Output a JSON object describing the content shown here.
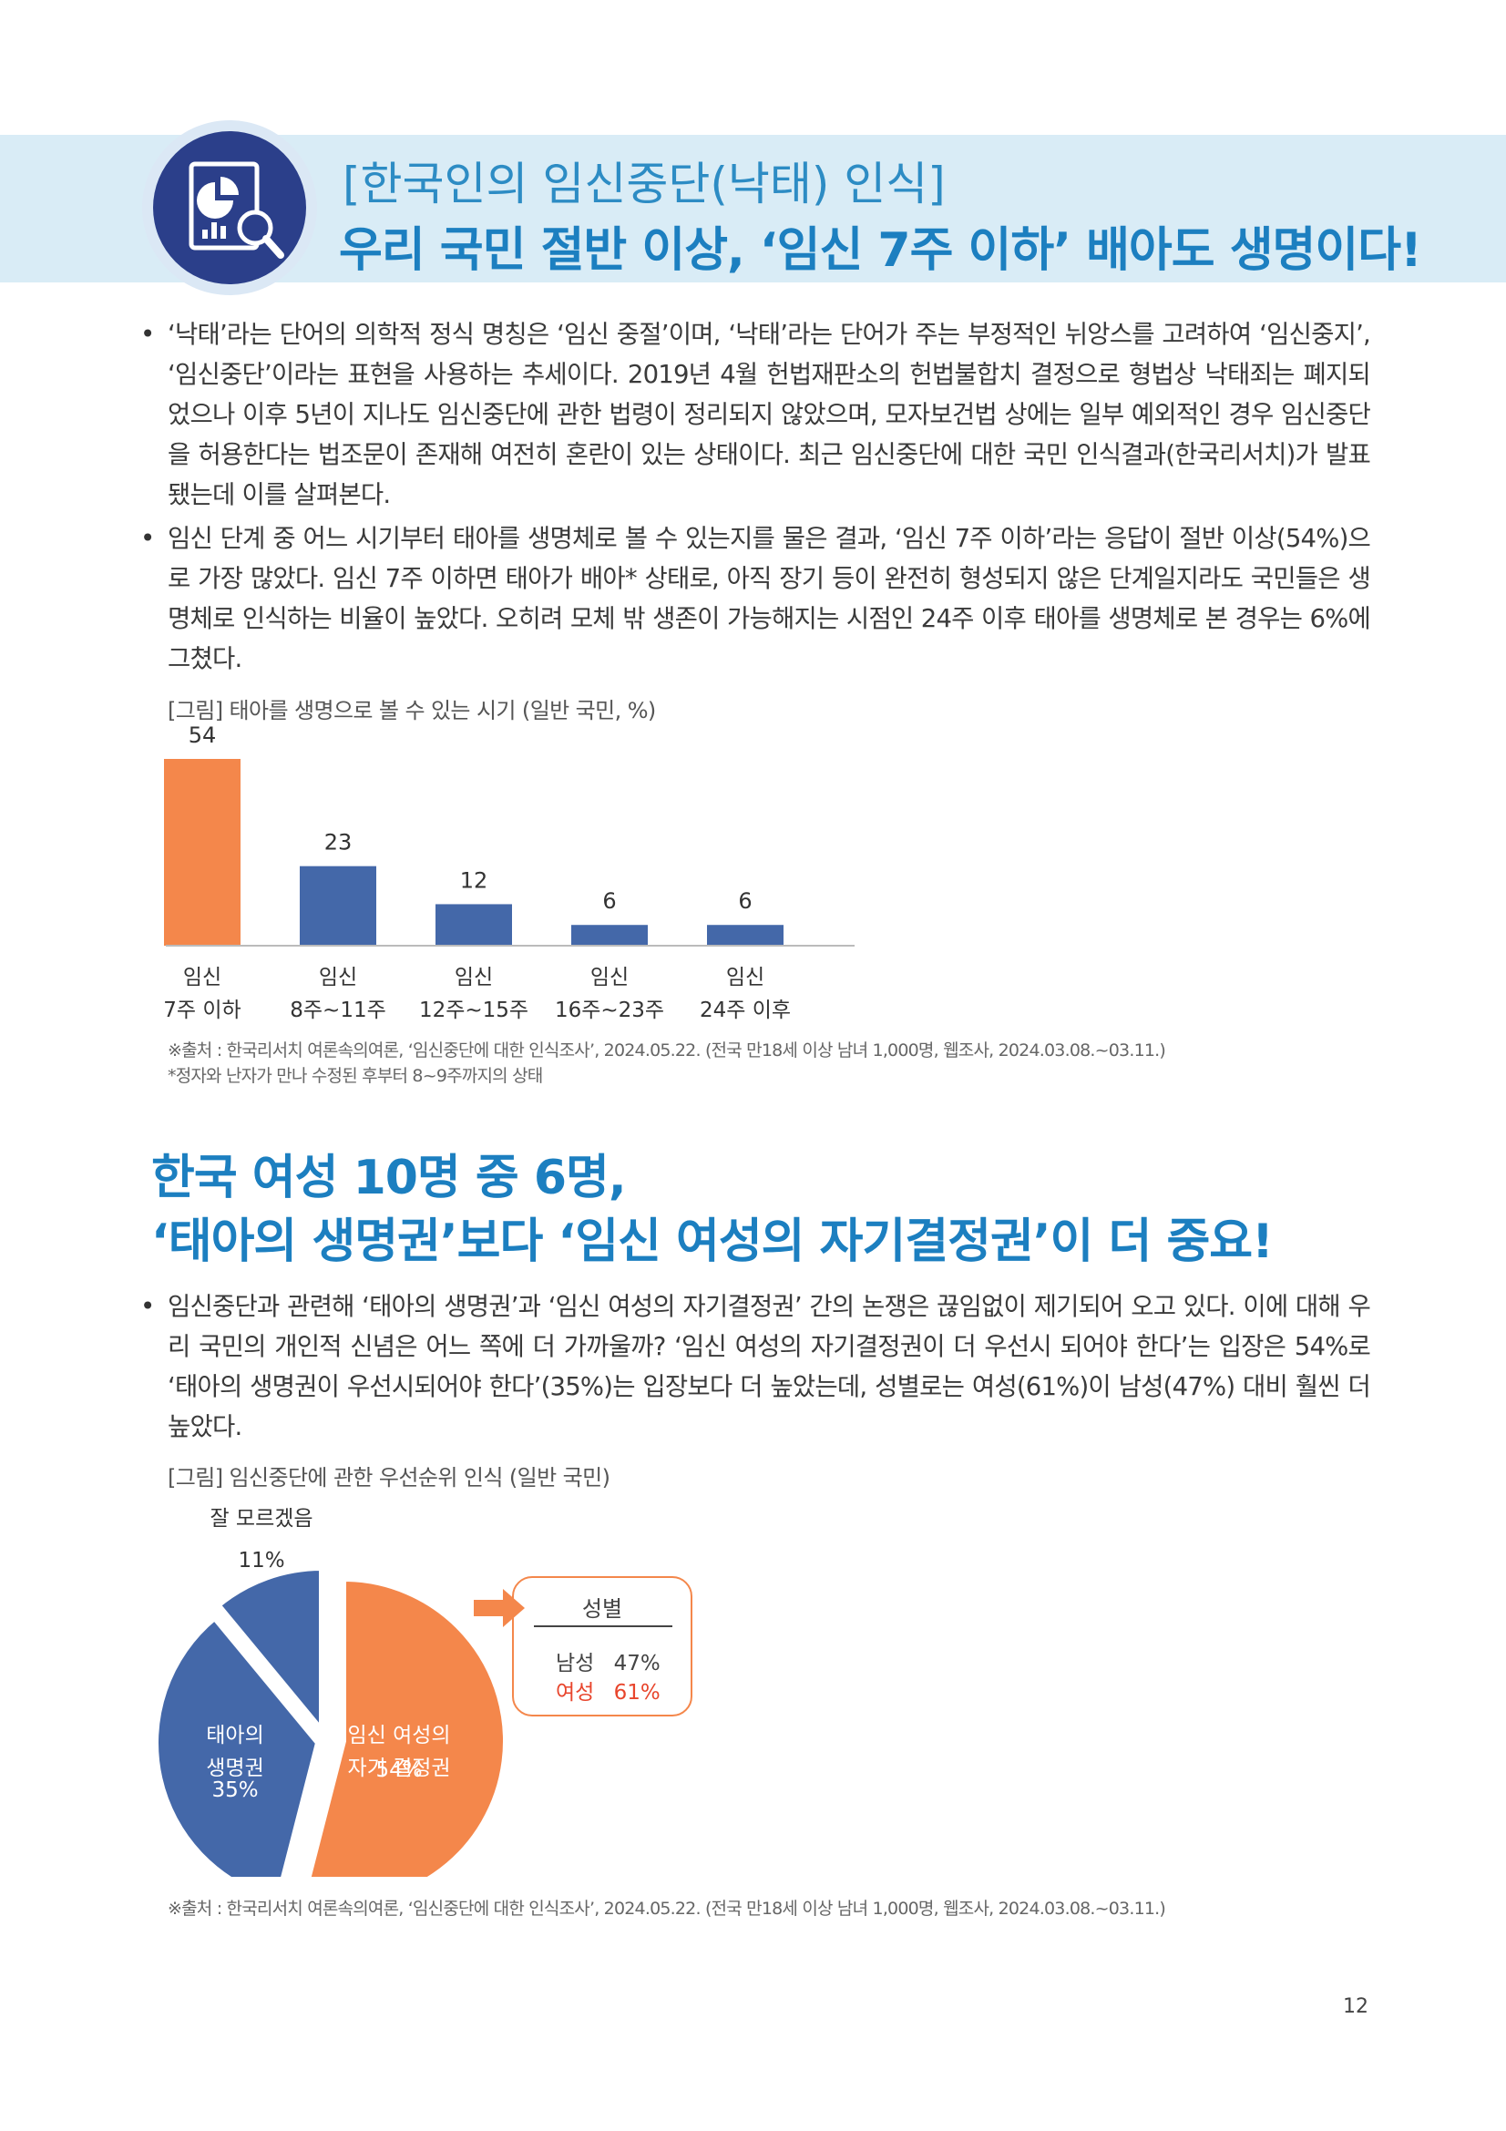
{
  "header": {
    "subtitle": "[한국인의 임신중단(낙태) 인식]",
    "title": "우리 국민 절반 이상, ‘임신 7주 이하’ 배아도 생명이다!"
  },
  "section1": {
    "bullets": [
      "‘낙태’라는 단어의 의학적 정식 명칭은 ‘임신 중절’이며, ‘낙태’라는 단어가 주는 부정적인 뉘앙스를 고려하여 ‘임신중지’, ‘임신중단’이라는 표현을 사용하는 추세이다. 2019년 4월 헌법재판소의 헌법불합치 결정으로 형법상 낙태죄는 폐지되었으나 이후 5년이 지나도 임신중단에 관한 법령이 정리되지 않았으며, 모자보건법 상에는 일부 예외적인 경우 임신중단을 허용한다는 법조문이 존재해 여전히 혼란이 있는 상태이다. 최근 임신중단에 대한 국민 인식결과(한국리서치)가 발표됐는데 이를 살펴본다.",
      "임신 단계 중 어느 시기부터 태아를 생명체로 볼 수 있는지를 물은 결과, ‘임신 7주 이하’라는 응답이 절반 이상(54%)으로 가장 많았다. 임신 7주 이하면 태아가 배아* 상태로, 아직 장기 등이 완전히 형성되지 않은 단계일지라도 국민들은 생명체로 인식하는 비율이 높았다. 오히려 모체 밖 생존이 가능해지는 시점인 24주 이후 태아를 생명체로 본 경우는 6%에 그쳤다."
    ]
  },
  "figure1": {
    "caption": "[그림] 태아를 생명으로 볼 수 있는 시기 (일반 국민, %)",
    "footnote1": "※출처 : 한국리서치 여론속의여론, ‘임신중단에 대한 인식조사’, 2024.05.22. (전국 만18세 이상 남녀 1,000명, 웹조사, 2024.03.08.~03.11.)",
    "footnote2": "*정자와 난자가 만나 수정된 후부터 8~9주까지의 상태"
  },
  "section2": {
    "title_line1": "한국 여성 10명 중 6명,",
    "title_line2": "‘태아의 생명권’보다 ‘임신 여성의 자기결정권’이 더 중요!",
    "bullets": [
      "임신중단과 관련해 ‘태아의 생명권’과 ‘임신 여성의 자기결정권’ 간의 논쟁은 끊임없이 제기되어 오고 있다. 이에 대해 우리 국민의 개인적 신념은 어느 쪽에 더 가까울까? ‘임신 여성의 자기결정권이 더 우선시 되어야 한다’는 입장은 54%로 ‘태아의 생명권이 우선시되어야 한다’(35%)는 입장보다 더 높았는데, 성별로는 여성(61%)이 남성(47%) 대비 훨씬 더 높았다."
    ]
  },
  "figure2": {
    "caption": "[그림] 임신중단에 관한 우선순위 인식 (일반 국민)",
    "footnote": "※출처 : 한국리서치 여론속의여론, ‘임신중단에 대한 인식조사’, 2024.05.22. (전국 만18세 이상 남녀 1,000명, 웹조사, 2024.03.08.~03.11.)",
    "box_title": "성별",
    "box_rows": [
      {
        "label": "남성",
        "value": "47%"
      },
      {
        "label": "여성",
        "value": "61%"
      }
    ]
  },
  "chart_data": [
    {
      "type": "bar",
      "title": "태아를 생명으로 볼 수 있는 시기 (일반 국민, %)",
      "categories": [
        "임신\n7주 이하",
        "임신\n8주~11주",
        "임신\n12주~15주",
        "임신\n16주~23주",
        "임신\n24주 이후"
      ],
      "category_lines": [
        [
          "임신",
          "7주 이하"
        ],
        [
          "임신",
          "8주~11주"
        ],
        [
          "임신",
          "12주~15주"
        ],
        [
          "임신",
          "16주~23주"
        ],
        [
          "임신",
          "24주 이후"
        ]
      ],
      "values": [
        54,
        23,
        12,
        6,
        6
      ],
      "value_labels": [
        "54",
        "23",
        "12",
        "6",
        "6"
      ],
      "colors": [
        "#f4874b",
        "#4468a9",
        "#4468a9",
        "#4468a9",
        "#4468a9"
      ],
      "ylim": [
        0,
        54
      ],
      "grid": false
    },
    {
      "type": "pie",
      "title": "임신중단에 관한 우선순위 인식 (일반 국민)",
      "slices": [
        {
          "label_lines": [
            "임신 여성의",
            "자기 결정권"
          ],
          "pct_label": "54%",
          "value": 54,
          "color": "#f4874b"
        },
        {
          "label_lines": [
            "태아의",
            "생명권"
          ],
          "pct_label": "35%",
          "value": 35,
          "color": "#4468a9"
        },
        {
          "label_lines": [
            "잘 모르겠음"
          ],
          "pct_label": "11%",
          "value": 11,
          "color": "#4468a9"
        }
      ]
    }
  ],
  "page": {
    "number": "12"
  },
  "colors": {
    "accent_blue": "#1c7fc0",
    "orange": "#f4874b",
    "navy": "#4468a9",
    "header_band": "#d9ecf6",
    "female_red": "#e8452c"
  }
}
